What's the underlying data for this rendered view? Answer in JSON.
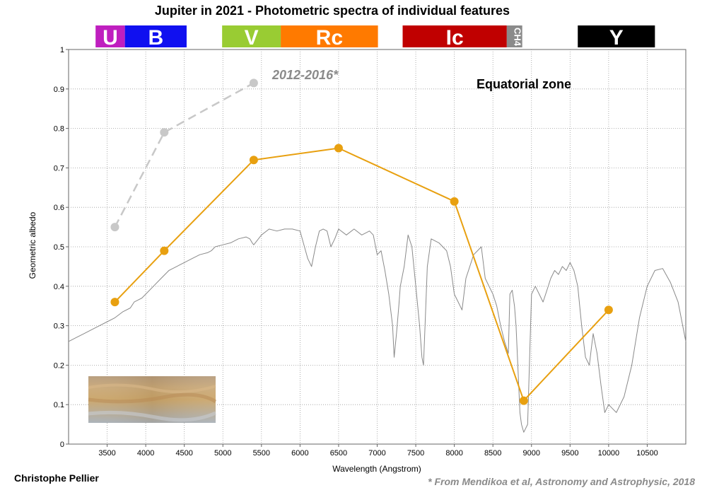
{
  "chart_data": {
    "type": "line",
    "title": "Jupiter in 2021 - Photometric spectra of individual features",
    "xlabel": "Wavelength (Angstrom)",
    "ylabel": "Geometric albedo",
    "xlim": [
      3000,
      11000
    ],
    "ylim": [
      0,
      1
    ],
    "x_ticks": [
      "3500",
      "4000",
      "4500",
      "5000",
      "5500",
      "6000",
      "6500",
      "7000",
      "7500",
      "8000",
      "8500",
      "9000",
      "9500",
      "10000",
      "10500"
    ],
    "y_ticks": [
      "0",
      "0.1",
      "0.2",
      "0.3",
      "0.4",
      "0.5",
      "0.6",
      "0.7",
      "0.8",
      "0.9",
      "1"
    ],
    "grid": true,
    "bands": [
      {
        "label": "U",
        "start": 3350,
        "end": 3730,
        "color": "#bf1fbf"
      },
      {
        "label": "B",
        "start": 3730,
        "end": 4530,
        "color": "#1010f0"
      },
      {
        "label": "V",
        "start": 4990,
        "end": 5750,
        "color": "#99cc33"
      },
      {
        "label": "Rc",
        "start": 5750,
        "end": 7010,
        "color": "#ff7a00"
      },
      {
        "label": "Ic",
        "start": 7330,
        "end": 8680,
        "color": "#c00000"
      },
      {
        "label": "CH4",
        "start": 8680,
        "end": 8880,
        "color": "#8a8a8a"
      },
      {
        "label": "Y",
        "start": 9600,
        "end": 10600,
        "color": "#000000"
      }
    ],
    "series": [
      {
        "name": "Equatorial zone",
        "color": "#e8a010",
        "x": [
          3600,
          4240,
          5400,
          6500,
          8000,
          8900,
          10000
        ],
        "y": [
          0.36,
          0.49,
          0.72,
          0.75,
          0.615,
          0.11,
          0.34
        ]
      },
      {
        "name": "2012-2016*",
        "color": "#c8c8c8",
        "dashed": true,
        "x": [
          3600,
          4240,
          5400
        ],
        "y": [
          0.55,
          0.79,
          0.915
        ]
      },
      {
        "color": "#8a8a8a",
        "x": [
          3000,
          3100,
          3200,
          3300,
          3400,
          3500,
          3600,
          3700,
          3800,
          3850,
          3900,
          3950,
          4000,
          4100,
          4200,
          4300,
          4400,
          4500,
          4600,
          4700,
          4800,
          4850,
          4900,
          5000,
          5100,
          5200,
          5300,
          5350,
          5380,
          5400,
          5420,
          5500,
          5600,
          5700,
          5800,
          5900,
          6000,
          6100,
          6150,
          6200,
          6250,
          6300,
          6350,
          6400,
          6450,
          6500,
          6600,
          6700,
          6800,
          6900,
          6950,
          7000,
          7050,
          7100,
          7150,
          7200,
          7220,
          7250,
          7280,
          7300,
          7350,
          7400,
          7450,
          7500,
          7550,
          7580,
          7600,
          7620,
          7650,
          7700,
          7800,
          7900,
          7950,
          8000,
          8050,
          8100,
          8150,
          8200,
          8250,
          8300,
          8350,
          8400,
          8450,
          8500,
          8550,
          8600,
          8650,
          8700,
          8720,
          8750,
          8780,
          8800,
          8850,
          8870,
          8900,
          8950,
          9000,
          9050,
          9100,
          9150,
          9200,
          9250,
          9300,
          9350,
          9400,
          9450,
          9500,
          9550,
          9600,
          9650,
          9700,
          9750,
          9780,
          9800,
          9850,
          9900,
          9950,
          10000,
          10050,
          10100,
          10200,
          10300,
          10400,
          10500,
          10600,
          10700,
          10800,
          10900,
          11000
        ],
        "y": [
          0.26,
          0.27,
          0.28,
          0.29,
          0.3,
          0.31,
          0.32,
          0.335,
          0.345,
          0.36,
          0.365,
          0.37,
          0.38,
          0.4,
          0.42,
          0.44,
          0.45,
          0.46,
          0.47,
          0.48,
          0.485,
          0.49,
          0.5,
          0.505,
          0.51,
          0.52,
          0.525,
          0.52,
          0.51,
          0.505,
          0.51,
          0.53,
          0.545,
          0.54,
          0.545,
          0.545,
          0.54,
          0.47,
          0.45,
          0.5,
          0.54,
          0.545,
          0.54,
          0.5,
          0.52,
          0.545,
          0.53,
          0.545,
          0.53,
          0.54,
          0.53,
          0.48,
          0.49,
          0.44,
          0.38,
          0.3,
          0.22,
          0.28,
          0.35,
          0.4,
          0.45,
          0.53,
          0.5,
          0.4,
          0.3,
          0.22,
          0.2,
          0.3,
          0.45,
          0.52,
          0.51,
          0.49,
          0.45,
          0.38,
          0.36,
          0.34,
          0.42,
          0.45,
          0.48,
          0.49,
          0.5,
          0.42,
          0.4,
          0.38,
          0.35,
          0.3,
          0.26,
          0.23,
          0.38,
          0.39,
          0.35,
          0.3,
          0.08,
          0.05,
          0.03,
          0.05,
          0.38,
          0.4,
          0.38,
          0.36,
          0.39,
          0.42,
          0.44,
          0.43,
          0.45,
          0.44,
          0.46,
          0.44,
          0.4,
          0.3,
          0.22,
          0.2,
          0.25,
          0.28,
          0.23,
          0.15,
          0.08,
          0.1,
          0.09,
          0.08,
          0.12,
          0.2,
          0.32,
          0.4,
          0.44,
          0.445,
          0.41,
          0.36,
          0.26
        ]
      }
    ],
    "annotations": [
      "Equatorial zone",
      "2012-2016*"
    ]
  },
  "credit": "Christophe Pellier",
  "source_note": "* From Mendikoa et al, Astronomy and Astrophysic, 2018",
  "image_inset": "equatorial zone photo crop"
}
